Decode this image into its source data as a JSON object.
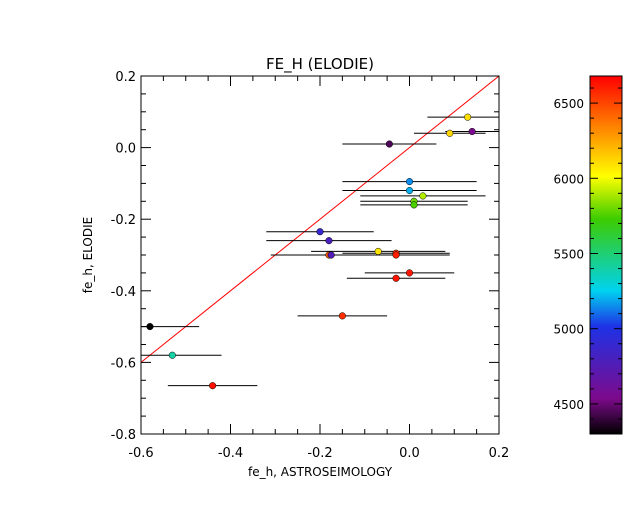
{
  "chart_data": {
    "type": "scatter",
    "title": "FE_H  (ELODIE)",
    "xlabel": "fe_h, ASTROSEIMOLOGY",
    "ylabel": "fe_h, ELODIE",
    "xlim": [
      -0.6,
      0.2
    ],
    "ylim": [
      -0.8,
      0.2
    ],
    "x_ticks": [
      "-0.6",
      "-0.4",
      "-0.2",
      "0.0",
      "0.2"
    ],
    "x_tick_values": [
      -0.6,
      -0.4,
      -0.2,
      0.0,
      0.2
    ],
    "y_ticks": [
      "-0.8",
      "-0.6",
      "-0.4",
      "-0.2",
      "0.0",
      "0.2"
    ],
    "y_tick_values": [
      -0.8,
      -0.6,
      -0.4,
      -0.2,
      0.0,
      0.2
    ],
    "grid": false,
    "reference_line": {
      "description": "one-to-one line",
      "color": "#ff0000",
      "from": [
        -0.6,
        -0.6
      ],
      "to": [
        0.2,
        0.2
      ]
    },
    "colorbar": {
      "quantity": "Teff",
      "min": 4300,
      "max": 6680,
      "ticks": [
        "4500",
        "5000",
        "5500",
        "6000",
        "6500"
      ],
      "tick_values": [
        4500,
        5000,
        5500,
        6000,
        6500
      ],
      "placement": "right"
    },
    "points": [
      {
        "x": 0.13,
        "y": 0.085,
        "xerr": 0.09,
        "teff": 6100
      },
      {
        "x": 0.14,
        "y": 0.045,
        "xerr": 0.06,
        "teff": 4550
      },
      {
        "x": 0.09,
        "y": 0.04,
        "xerr": 0.08,
        "teff": 6120
      },
      {
        "x": -0.045,
        "y": 0.01,
        "xerr": 0.105,
        "teff": 4450
      },
      {
        "x": 0.0,
        "y": -0.095,
        "xerr": 0.15,
        "teff": 5150
      },
      {
        "x": 0.0,
        "y": -0.12,
        "xerr": 0.15,
        "teff": 5200
      },
      {
        "x": 0.03,
        "y": -0.135,
        "xerr": 0.14,
        "teff": 5900
      },
      {
        "x": 0.01,
        "y": -0.15,
        "xerr": 0.12,
        "teff": 5800
      },
      {
        "x": 0.01,
        "y": -0.16,
        "xerr": 0.12,
        "teff": 5750
      },
      {
        "x": -0.2,
        "y": -0.235,
        "xerr": 0.12,
        "teff": 4900
      },
      {
        "x": -0.18,
        "y": -0.26,
        "xerr": 0.14,
        "teff": 4800
      },
      {
        "x": -0.07,
        "y": -0.29,
        "xerr": 0.15,
        "teff": 6080
      },
      {
        "x": -0.18,
        "y": -0.3,
        "xerr": 0.13,
        "teff": 6450
      },
      {
        "x": -0.175,
        "y": -0.3,
        "xerr": 0.12,
        "teff": 4750
      },
      {
        "x": -0.03,
        "y": -0.295,
        "xerr": 0.12,
        "teff": 6550
      },
      {
        "x": -0.03,
        "y": -0.3,
        "xerr": 0.12,
        "teff": 6600
      },
      {
        "x": 0.0,
        "y": -0.35,
        "xerr": 0.1,
        "teff": 6620
      },
      {
        "x": -0.03,
        "y": -0.365,
        "xerr": 0.11,
        "teff": 6630
      },
      {
        "x": -0.15,
        "y": -0.47,
        "xerr": 0.1,
        "teff": 6560
      },
      {
        "x": -0.58,
        "y": -0.5,
        "xerr": 0.11,
        "teff": 4300
      },
      {
        "x": -0.53,
        "y": -0.58,
        "xerr": 0.11,
        "teff": 5400
      },
      {
        "x": -0.44,
        "y": -0.665,
        "xerr": 0.1,
        "teff": 6640
      }
    ]
  }
}
